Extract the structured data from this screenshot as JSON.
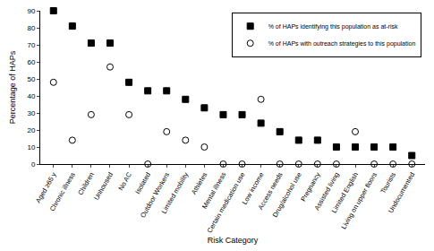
{
  "chart_data": {
    "type": "scatter",
    "x_label": "Risk Category",
    "y_label": "Percentage of HAPs",
    "categories": [
      "Aged ≥65 y",
      "Chronic illness",
      "Children",
      "Unhoused",
      "No AC",
      "Isolated",
      "Outdoor Workers",
      "Limited mobility",
      "Athletes",
      "Mental illness",
      "Certain medication use",
      "Low income",
      "Access needs",
      "Drug/alcohol use",
      "Pregnancy",
      "Assisted living",
      "Limited English",
      "Living on upper floors",
      "Tourists",
      "Undocumented"
    ],
    "series": [
      {
        "name": "% of HAPs identifying this population as at-risk",
        "color": "#000000",
        "marker": "square",
        "values": [
          90,
          81,
          71,
          71,
          48,
          43,
          43,
          38,
          33,
          29,
          29,
          24,
          19,
          14,
          14,
          10,
          10,
          10,
          10,
          5
        ]
      },
      {
        "name": "% of HAPs with outreach strategies to this population",
        "color": "#000000",
        "marker": "circle-open",
        "values": [
          48,
          14,
          29,
          57,
          29,
          0,
          19,
          14,
          10,
          0,
          0,
          38,
          0,
          0,
          0,
          0,
          19,
          0,
          0,
          0
        ]
      }
    ],
    "ylim": [
      0,
      90
    ],
    "yticks": [
      0,
      10,
      20,
      30,
      40,
      50,
      60,
      70,
      80,
      90
    ],
    "grid": false,
    "legend": "top right"
  }
}
